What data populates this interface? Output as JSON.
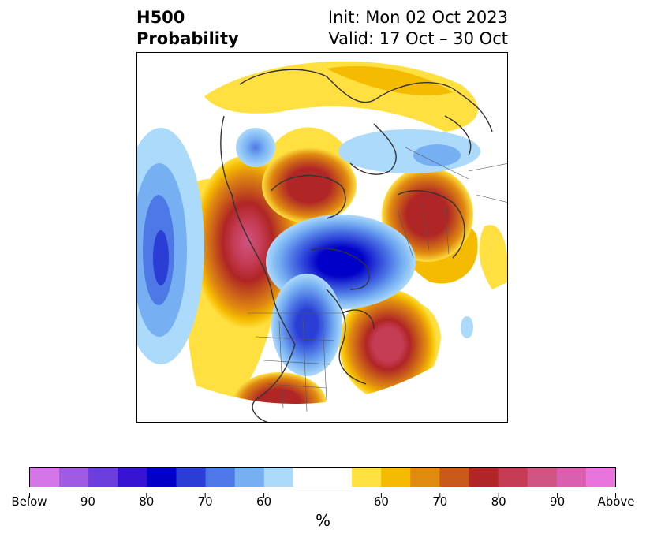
{
  "title": {
    "left": [
      "H500",
      "Probability"
    ],
    "right": [
      "Init: Mon 02 Oct 2023",
      "Valid: 17 Oct – 30 Oct"
    ]
  },
  "colorbar": {
    "colors": [
      "#d576e8",
      "#9f5be2",
      "#6c3edb",
      "#3714d1",
      "#0000c8",
      "#2a3ed6",
      "#4e78e5",
      "#77b0f2",
      "#acdafb",
      "#ffffff",
      "#ffffff",
      "#ffe040",
      "#f5bb00",
      "#e08a10",
      "#c75a1b",
      "#b02525",
      "#c53c55",
      "#d05582",
      "#da5fb0",
      "#e875dc"
    ],
    "tick_labels": [
      "Below",
      "90",
      "80",
      "70",
      "60",
      "60",
      "70",
      "80",
      "90",
      "Above"
    ],
    "unit": "%"
  }
}
